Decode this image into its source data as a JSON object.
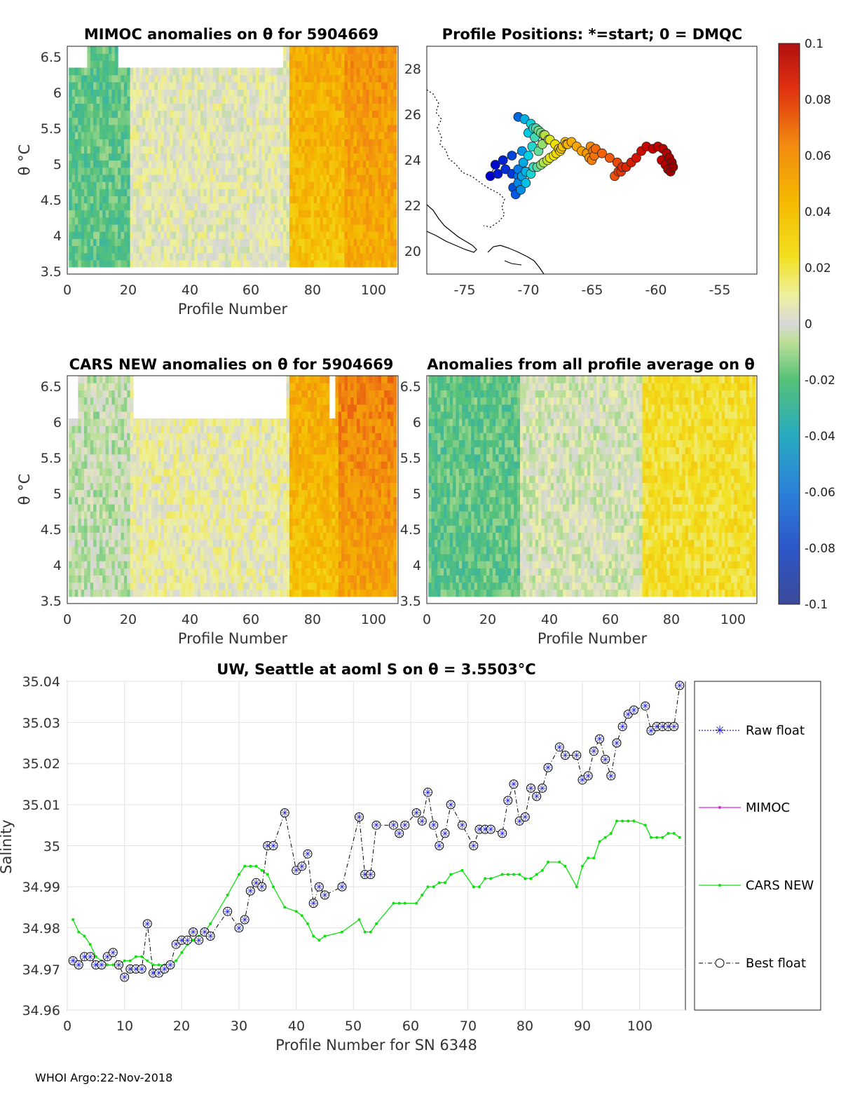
{
  "footer": "WHOI Argo:22-Nov-2018",
  "colorbar": {
    "min": -0.1,
    "max": 0.1,
    "ticks": [
      "0.1",
      "0.08",
      "0.06",
      "0.04",
      "0.02",
      "0",
      "-0.02",
      "-0.04",
      "-0.06",
      "-0.08",
      "-0.1"
    ]
  },
  "panels": {
    "mimoc": {
      "title": "MIMOC anomalies on θ  for 5904669",
      "xlabel": "Profile Number",
      "ylabel": "θ °C",
      "xticks": [
        "0",
        "20",
        "40",
        "60",
        "80",
        "100"
      ],
      "yticks": [
        "6.5",
        "6",
        "5.5",
        "5",
        "4.5",
        "4",
        "3.5"
      ]
    },
    "map": {
      "title": "Profile Positions: *=start; 0 = DMQC",
      "xticks": [
        "-75",
        "-70",
        "-65",
        "-60",
        "-55"
      ],
      "yticks": [
        "28",
        "26",
        "24",
        "22",
        "20"
      ]
    },
    "cars": {
      "title": "CARS NEW anomalies on θ for 5904669",
      "xlabel": "Profile Number",
      "ylabel": "θ °C",
      "xticks": [
        "0",
        "20",
        "40",
        "60",
        "80",
        "100"
      ],
      "yticks": [
        "6.5",
        "6",
        "5.5",
        "5",
        "4.5",
        "4",
        "3.5"
      ]
    },
    "allavg": {
      "title": "Anomalies from all profile average on θ",
      "xlabel": "Profile Number",
      "xticks": [
        "0",
        "20",
        "40",
        "60",
        "80",
        "100"
      ],
      "yticks": [
        "6.5",
        "6",
        "5.5",
        "5",
        "4.5",
        "4",
        "3.5"
      ]
    }
  },
  "chart_data": [
    {
      "type": "heatmap",
      "title": "MIMOC anomalies on θ  for 5904669",
      "xlabel": "Profile Number",
      "ylabel": "θ °C",
      "xlim": [
        0,
        108
      ],
      "ylim": [
        3.45,
        6.65
      ],
      "value_range": [
        -0.1,
        0.1
      ],
      "anomaly_by_profile_band": [
        {
          "profiles": [
            1,
            20
          ],
          "value": -0.02
        },
        {
          "profiles": [
            20,
            72
          ],
          "value": 0.005
        },
        {
          "profiles": [
            72,
            90
          ],
          "value": 0.045
        },
        {
          "profiles": [
            90,
            107
          ],
          "value": 0.055
        }
      ]
    },
    {
      "type": "scatter",
      "title": "Profile Positions: *=start; 0 = DMQC",
      "xlim": [
        -78,
        -52
      ],
      "ylim": [
        19,
        29
      ],
      "x": [
        -70.8,
        -70.3,
        -69.8,
        -69.4,
        -69.0,
        -68.7,
        -68.4,
        -69.7,
        -69.2,
        -68.9,
        -69.5,
        -70.0,
        -69.6,
        -69.2,
        -68.8,
        -68.3,
        -67.9,
        -67.6,
        -67.3,
        -67.1,
        -66.9,
        -67.5,
        -68.0,
        -68.5,
        -69.0,
        -69.6,
        -70.2,
        -70.8,
        -71.3,
        -71.8,
        -72.4,
        -73.0,
        -72.6,
        -72.0,
        -71.3,
        -70.5,
        -70.0,
        -70.4,
        -70.8,
        -70.5,
        -70.8,
        -71.2,
        -71.0,
        -70.6,
        -70.2,
        -69.8,
        -69.3,
        -68.8,
        -68.3,
        -67.8,
        -67.4,
        -67.0,
        -66.6,
        -66.2,
        -65.8,
        -65.4,
        -65.2,
        -65.0,
        -64.8,
        -64.9,
        -65.1,
        -64.7,
        -64.2,
        -63.6,
        -63.0,
        -62.6,
        -62.9,
        -63.2,
        -62.7,
        -62.3,
        -61.9,
        -61.5,
        -61.1,
        -60.7,
        -60.2,
        -59.8,
        -59.4,
        -59.1,
        -58.9,
        -58.7,
        -58.6,
        -58.8,
        -59.0,
        -59.2,
        -59.5
      ],
      "y": [
        25.9,
        25.8,
        25.6,
        25.4,
        25.2,
        25.1,
        24.9,
        24.6,
        24.4,
        24.7,
        25.0,
        25.2,
        25.4,
        25.3,
        25.1,
        24.9,
        24.7,
        24.5,
        24.6,
        24.8,
        24.7,
        24.4,
        24.2,
        24.0,
        23.8,
        23.7,
        23.5,
        23.3,
        23.4,
        23.6,
        23.4,
        23.3,
        23.8,
        24.0,
        24.2,
        24.4,
        24.2,
        23.9,
        23.6,
        23.3,
        23.0,
        22.8,
        22.5,
        22.7,
        23.0,
        23.4,
        23.7,
        23.9,
        24.1,
        24.3,
        24.5,
        24.7,
        24.8,
        24.6,
        24.4,
        24.3,
        24.1,
        24.0,
        24.2,
        24.4,
        24.6,
        24.5,
        24.3,
        24.1,
        23.9,
        23.7,
        23.5,
        23.3,
        23.5,
        23.7,
        23.9,
        24.1,
        24.4,
        24.6,
        24.5,
        24.6,
        24.5,
        24.3,
        24.1,
        23.9,
        23.7,
        23.5,
        23.6,
        23.8,
        24.0
      ]
    },
    {
      "type": "heatmap",
      "title": "CARS NEW anomalies on θ for 5904669",
      "xlabel": "Profile Number",
      "ylabel": "θ °C",
      "xlim": [
        0,
        108
      ],
      "ylim": [
        3.45,
        6.65
      ],
      "value_range": [
        -0.1,
        0.1
      ],
      "anomaly_by_profile_band": [
        {
          "profiles": [
            1,
            20
          ],
          "value": -0.005
        },
        {
          "profiles": [
            20,
            72
          ],
          "value": 0.008
        },
        {
          "profiles": [
            72,
            88
          ],
          "value": 0.045
        },
        {
          "profiles": [
            88,
            107
          ],
          "value": 0.06
        }
      ]
    },
    {
      "type": "heatmap",
      "title": "Anomalies from all profile average on θ",
      "xlabel": "Profile Number",
      "xlim": [
        0,
        108
      ],
      "ylim": [
        3.45,
        6.65
      ],
      "value_range": [
        -0.1,
        0.1
      ],
      "anomaly_by_profile_band": [
        {
          "profiles": [
            1,
            30
          ],
          "value": -0.02
        },
        {
          "profiles": [
            30,
            70
          ],
          "value": 0.0
        },
        {
          "profiles": [
            70,
            107
          ],
          "value": 0.025
        }
      ]
    },
    {
      "type": "line",
      "title": "UW, Seattle at aoml S on θ = 3.5503°C",
      "xlabel": "Profile Number for SN 6348",
      "ylabel": "Salinity",
      "xlim": [
        0,
        108
      ],
      "ylim": [
        34.96,
        35.04
      ],
      "xticks": [
        "0",
        "10",
        "20",
        "30",
        "40",
        "50",
        "60",
        "70",
        "80",
        "90",
        "100"
      ],
      "yticks": [
        "35.04",
        "35.03",
        "35.02",
        "35.01",
        "35",
        "34.99",
        "34.98",
        "34.97",
        "34.96"
      ],
      "legend": [
        "Raw float",
        "MIMOC",
        "CARS NEW",
        "Best float"
      ],
      "series": [
        {
          "name": "Raw float / Best float",
          "x": [
            1,
            2,
            3,
            4,
            5,
            6,
            7,
            8,
            9,
            10,
            11,
            12,
            13,
            14,
            15,
            16,
            17,
            18,
            19,
            20,
            21,
            22,
            23,
            24,
            25,
            28,
            30,
            31,
            32,
            33,
            34,
            35,
            36,
            38,
            40,
            41,
            42,
            43,
            44,
            45,
            48,
            51,
            52,
            53,
            54,
            57,
            58,
            59,
            61,
            62,
            63,
            64,
            65,
            66,
            67,
            69,
            71,
            72,
            73,
            74,
            76,
            77,
            78,
            79,
            80,
            81,
            82,
            83,
            84,
            86,
            87,
            89,
            90,
            91,
            92,
            93,
            94,
            95,
            96,
            97,
            98,
            99,
            101,
            102,
            103,
            104,
            105,
            106,
            107
          ],
          "values": [
            34.972,
            34.971,
            34.973,
            34.973,
            34.971,
            34.971,
            34.973,
            34.974,
            34.971,
            34.968,
            34.97,
            34.97,
            34.97,
            34.981,
            34.969,
            34.969,
            34.97,
            34.971,
            34.976,
            34.977,
            34.977,
            34.979,
            34.977,
            34.979,
            34.978,
            34.984,
            34.98,
            34.982,
            34.989,
            34.991,
            34.99,
            35.0,
            35.0,
            35.008,
            34.994,
            34.995,
            34.998,
            34.986,
            34.99,
            34.988,
            34.99,
            35.007,
            34.993,
            34.993,
            35.005,
            35.005,
            35.003,
            35.005,
            35.008,
            35.006,
            35.013,
            35.005,
            35.0,
            35.003,
            35.01,
            35.005,
            35.0,
            35.004,
            35.004,
            35.004,
            35.003,
            35.011,
            35.015,
            35.006,
            35.007,
            35.014,
            35.012,
            35.014,
            35.019,
            35.024,
            35.022,
            35.022,
            35.016,
            35.017,
            35.023,
            35.026,
            35.021,
            35.017,
            35.025,
            35.029,
            35.032,
            35.033,
            35.034,
            35.028,
            35.029,
            35.029,
            35.029,
            35.029,
            35.039
          ]
        },
        {
          "name": "CARS NEW",
          "x": [
            1,
            2,
            3,
            4,
            5,
            6,
            7,
            8,
            9,
            10,
            11,
            12,
            13,
            14,
            15,
            16,
            17,
            18,
            19,
            20,
            21,
            22,
            23,
            24,
            25,
            28,
            30,
            31,
            32,
            33,
            34,
            35,
            36,
            38,
            40,
            41,
            42,
            43,
            44,
            45,
            48,
            51,
            52,
            53,
            54,
            57,
            58,
            59,
            61,
            62,
            63,
            64,
            65,
            66,
            67,
            69,
            71,
            72,
            73,
            74,
            76,
            77,
            78,
            79,
            80,
            81,
            82,
            83,
            84,
            86,
            87,
            89,
            90,
            91,
            92,
            93,
            94,
            95,
            96,
            97,
            98,
            99,
            101,
            102,
            103,
            104,
            105,
            106,
            107
          ],
          "values": [
            34.982,
            34.979,
            34.978,
            34.976,
            34.973,
            34.972,
            34.971,
            34.971,
            34.971,
            34.972,
            34.972,
            34.973,
            34.973,
            34.972,
            34.971,
            34.971,
            34.971,
            34.971,
            34.972,
            34.974,
            34.976,
            34.977,
            34.978,
            34.979,
            34.981,
            34.988,
            34.993,
            34.995,
            34.995,
            34.995,
            34.994,
            34.993,
            34.99,
            34.985,
            34.984,
            34.983,
            34.981,
            34.978,
            34.977,
            34.978,
            34.979,
            34.982,
            34.979,
            34.979,
            34.981,
            34.986,
            34.986,
            34.986,
            34.986,
            34.988,
            34.99,
            34.99,
            34.991,
            34.991,
            34.993,
            34.994,
            34.99,
            34.99,
            34.992,
            34.992,
            34.993,
            34.993,
            34.993,
            34.993,
            34.992,
            34.992,
            34.993,
            34.994,
            34.996,
            34.996,
            34.995,
            34.99,
            34.995,
            34.997,
            34.997,
            35.001,
            35.002,
            35.003,
            35.006,
            35.006,
            35.006,
            35.006,
            35.005,
            35.002,
            35.002,
            35.002,
            35.003,
            35.003,
            35.002
          ]
        }
      ]
    }
  ]
}
